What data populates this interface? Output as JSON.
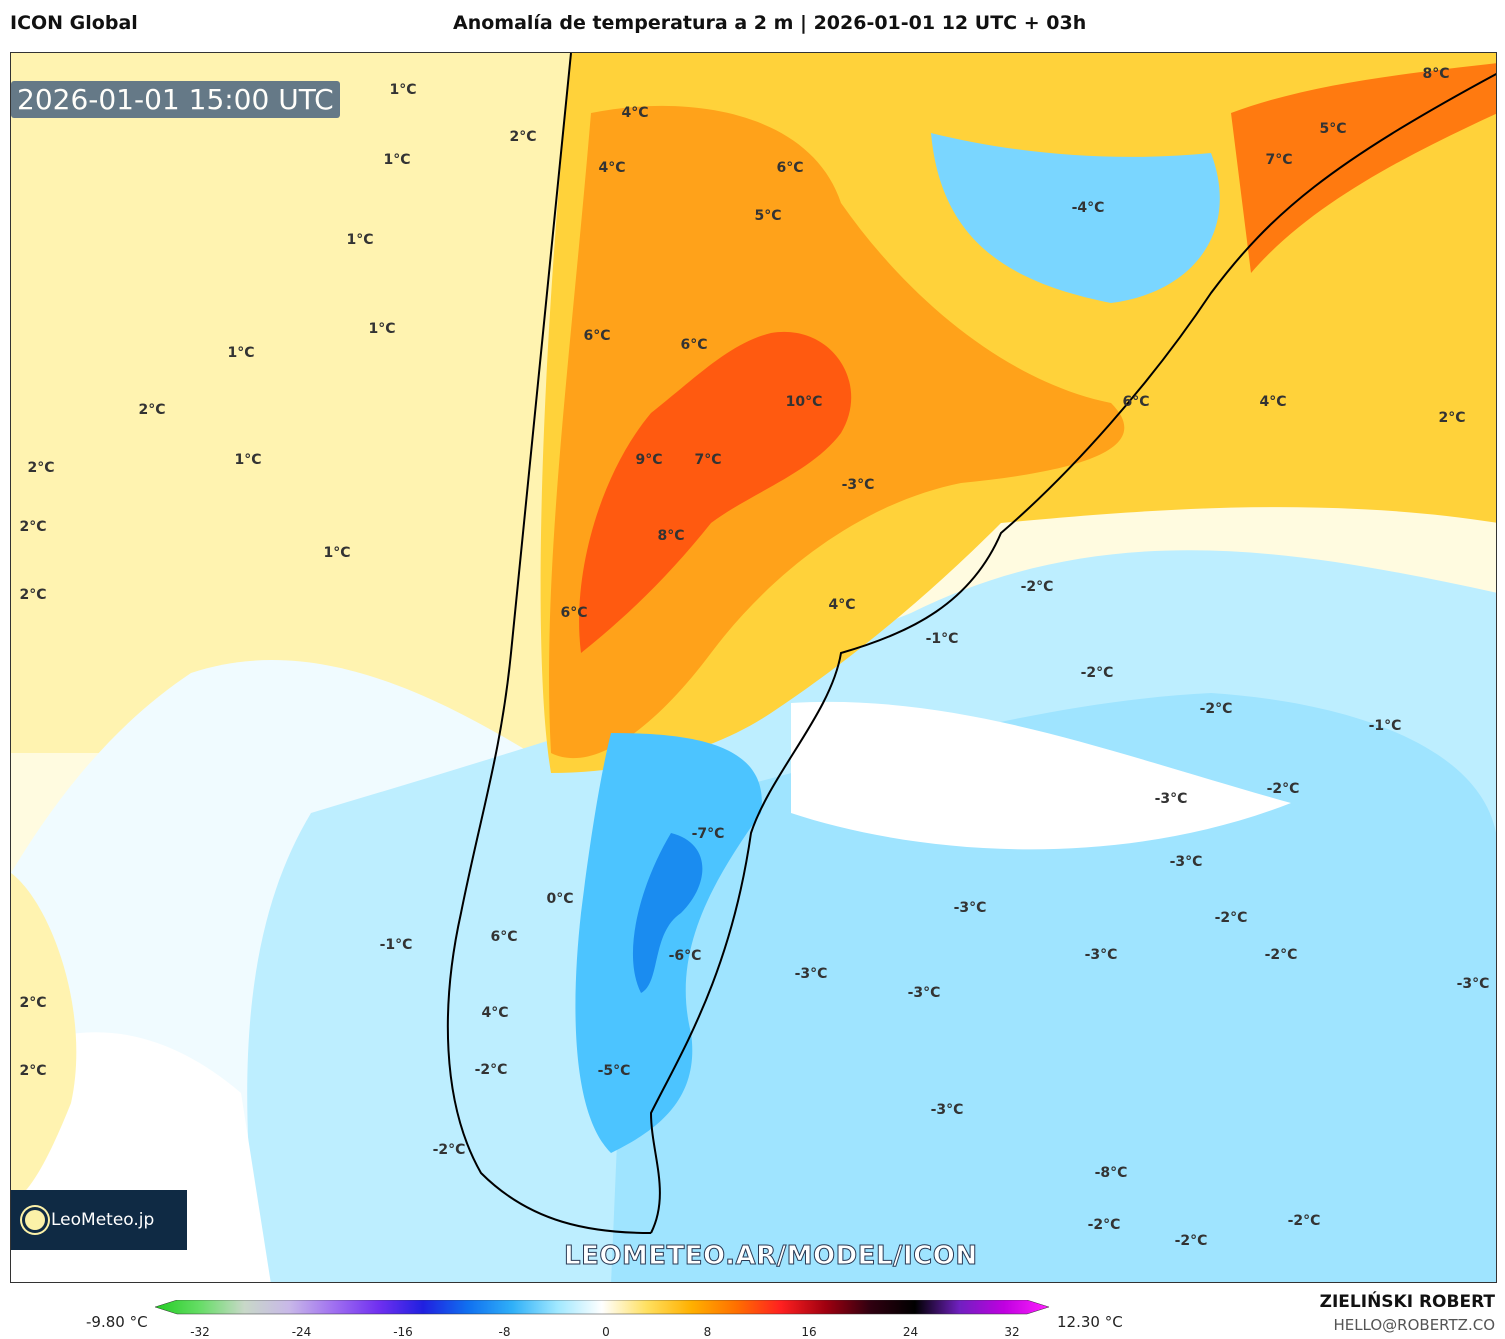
{
  "header": {
    "model": "ICON Global",
    "title": "Anomalía de temperatura a 2 m | 2026-01-01 12 UTC + 03h"
  },
  "map": {
    "timestamp": "2026-01-01 15:00 UTC",
    "labels": [
      "1°C",
      "2°C",
      "1°C",
      "1°C",
      "1°C",
      "1°C",
      "2°C",
      "1°C",
      "2°C",
      "2°C",
      "2°C",
      "1°C",
      "4°C",
      "4°C",
      "6°C",
      "5°C",
      "6°C",
      "6°C",
      "10°C",
      "9°C",
      "7°C",
      "8°C",
      "6°C",
      "-3°C",
      "4°C",
      "-1°C",
      "-2°C",
      "-2°C",
      "-2°C",
      "-1°C",
      "6°C",
      "4°C",
      "2°C",
      "8°C",
      "5°C",
      "7°C",
      "-4°C",
      "-7°C",
      "0°C",
      "6°C",
      "-6°C",
      "-3°C",
      "-3°C",
      "-3°C",
      "-3°C",
      "-3°C",
      "-2°C",
      "-2°C",
      "-2°C",
      "-3°C",
      "-1°C",
      "2°C",
      "2°C",
      "4°C",
      "-2°C",
      "-5°C",
      "-2°C",
      "-3°C",
      "-8°C",
      "-3°C",
      "-2°C",
      "-2°C",
      "-2°C"
    ],
    "watermark": "LEOMETEO.AR/MODEL/ICON",
    "logo": "LeoMeteo.jp"
  },
  "colorbar": {
    "min_label": "-9.80 °C",
    "max_label": "12.30 °C",
    "ticks": [
      "-32",
      "-24",
      "-16",
      "-8",
      "0",
      "8",
      "16",
      "24",
      "32"
    ],
    "colors": [
      "#22cc22",
      "#66dd66",
      "#c8d8c8",
      "#c8b8e8",
      "#a070f0",
      "#7030f0",
      "#2020e0",
      "#1070f0",
      "#30b0f8",
      "#a0e8ff",
      "#ffffff",
      "#ffe060",
      "#ffb000",
      "#ff7000",
      "#ff2020",
      "#a00010",
      "#300010",
      "#000000",
      "#7020c0",
      "#c000e0",
      "#ff20ff"
    ]
  },
  "credits": {
    "author": "ZIELIŃSKI ROBERT",
    "email": "HELLO@ROBERTZ.CO"
  }
}
